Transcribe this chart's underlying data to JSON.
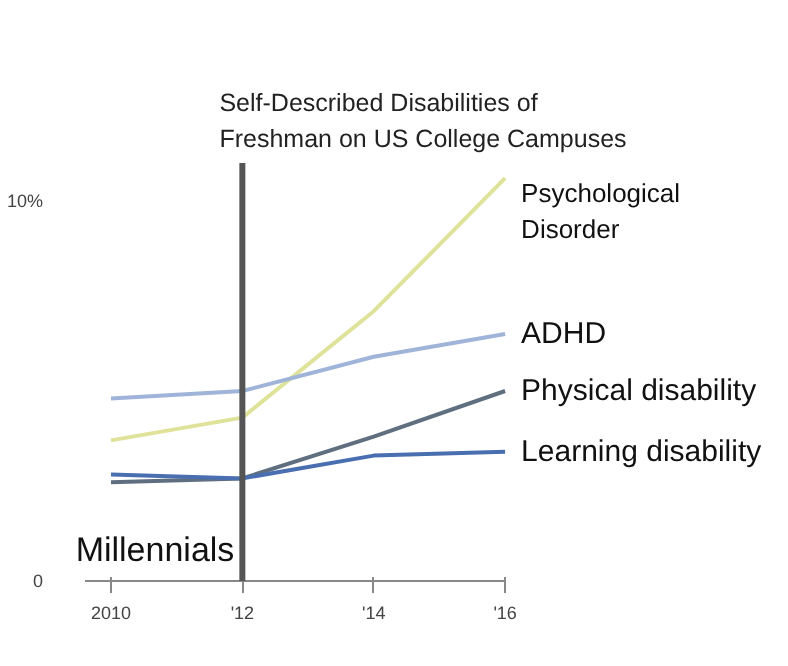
{
  "chart_data": {
    "type": "line",
    "title": "Self-Described Disabilities of\nFreshman on US College Campuses",
    "x": [
      2010,
      2012,
      2014,
      2016
    ],
    "series": [
      {
        "name": "Psychological\nDisorder",
        "color": "#dfe39a",
        "values": [
          3.7,
          4.3,
          7.1,
          10.6
        ]
      },
      {
        "name": "ADHD",
        "color": "#9fb4d8",
        "values": [
          4.8,
          5.0,
          5.9,
          6.5
        ]
      },
      {
        "name": "Physical disability",
        "color": "#5f6f80",
        "values": [
          2.6,
          2.7,
          3.8,
          5.0
        ]
      },
      {
        "name": "Learning disability",
        "color": "#4a6fb0",
        "values": [
          2.8,
          2.7,
          3.3,
          3.4
        ]
      }
    ],
    "xlim": [
      2009.6,
      2016
    ],
    "ylim": [
      0,
      11
    ],
    "xticks": [
      2010,
      {
        "value": 2012,
        "label": "'12"
      },
      {
        "value": 2014,
        "label": "'14"
      },
      {
        "value": 2016,
        "label": "'16"
      }
    ],
    "yticks": [
      0,
      {
        "value": 10,
        "label": "10%"
      }
    ],
    "ref_lines": [
      {
        "axis": "x",
        "value": 2012,
        "label": "Millennials",
        "color": "#555555"
      }
    ],
    "grid": false,
    "legend": false,
    "marker": "none",
    "line_style": "solid"
  }
}
